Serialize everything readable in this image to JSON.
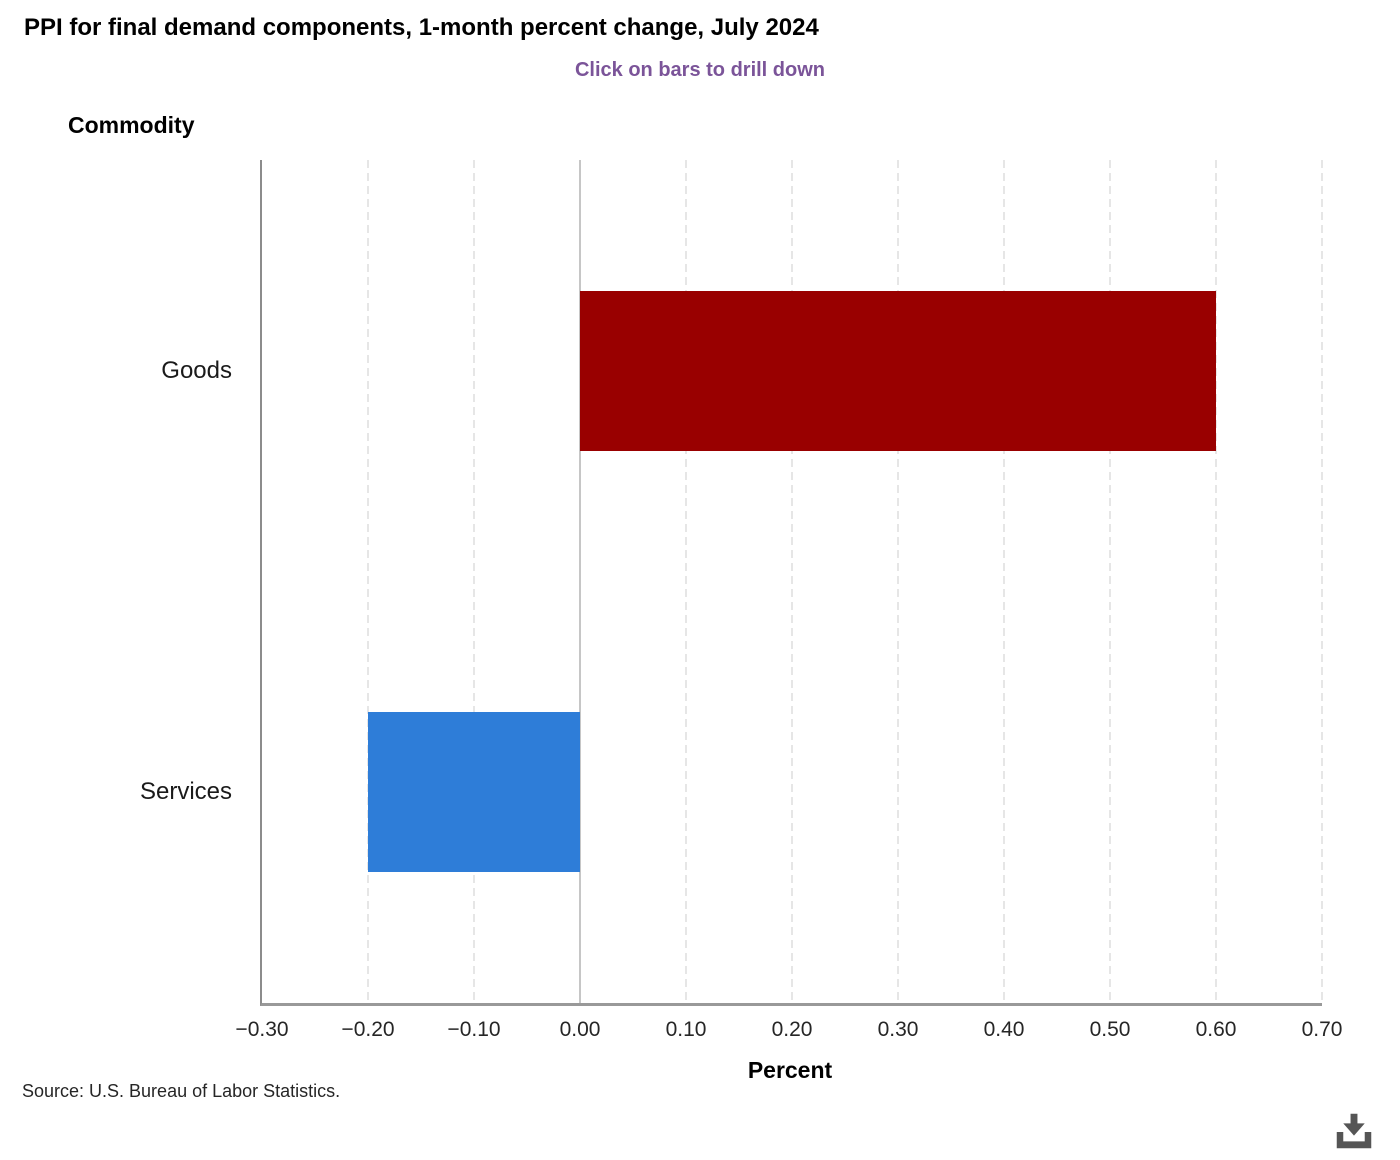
{
  "page": {
    "source": "Source: U.S. Bureau of Labor Statistics."
  },
  "chart_data": {
    "type": "bar",
    "orientation": "horizontal",
    "title": "PPI for final demand components, 1-month percent change, July 2024",
    "subtitle": "Click on bars to drill down",
    "axis_title_y": "Commodity",
    "axis_title_x": "Percent",
    "categories": [
      "Goods",
      "Services"
    ],
    "values": [
      0.6,
      -0.2
    ],
    "bar_colors": [
      "#990000",
      "#2E7DD8"
    ],
    "xlim": [
      -0.3,
      0.7
    ],
    "xticks": [
      -0.3,
      -0.2,
      -0.1,
      0,
      0.1,
      0.2,
      0.3,
      0.4,
      0.5,
      0.6,
      0.7
    ],
    "xtick_labels": [
      "−0.30",
      "−0.20",
      "−0.10",
      "0.00",
      "0.10",
      "0.20",
      "0.30",
      "0.40",
      "0.50",
      "0.60",
      "0.70"
    ],
    "grid": "vertical-dashed",
    "legend": "none",
    "colors": {
      "subtitle_text": "#7B5499",
      "axis_line": "#8C8C8C",
      "gridline": "#CCCCCC",
      "zero_line": "#C6C6C6",
      "tick_text": "#262626",
      "download_icon": "#555555"
    }
  }
}
